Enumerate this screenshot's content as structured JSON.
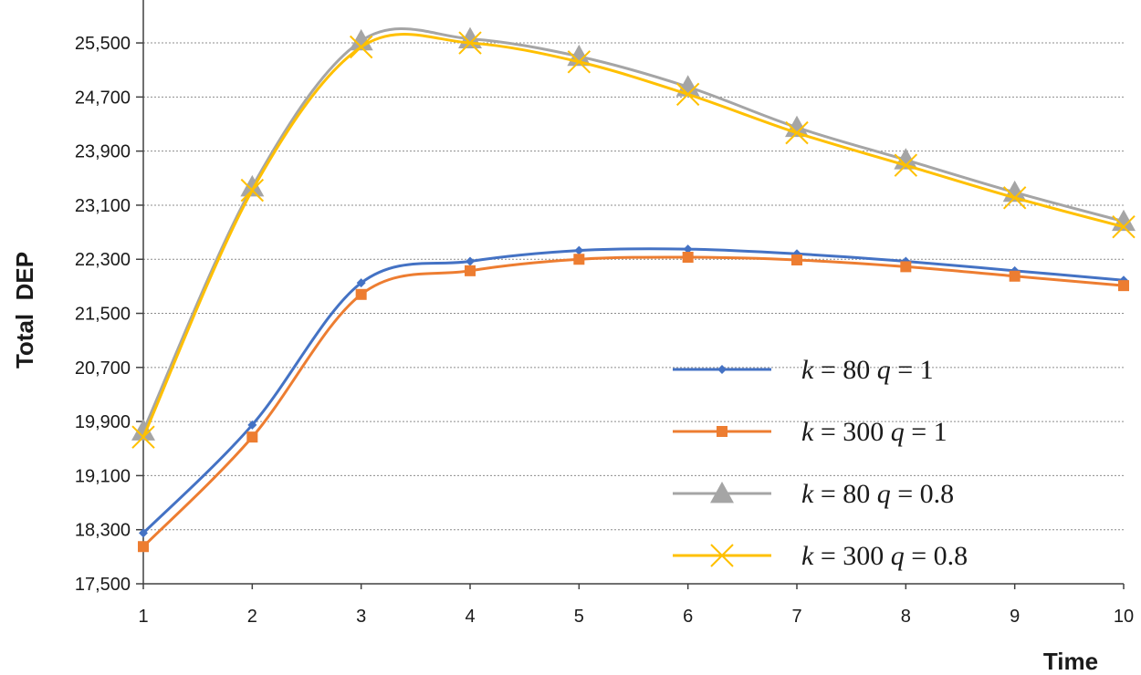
{
  "chart_data": {
    "type": "line",
    "title": "",
    "xlabel": "Time",
    "ylabel": "Total  DEP",
    "x": [
      1,
      2,
      3,
      4,
      5,
      6,
      7,
      8,
      9,
      10
    ],
    "x_tick_labels": [
      "1",
      "2",
      "3",
      "4",
      "5",
      "6",
      "7",
      "8",
      "9",
      "10"
    ],
    "ylim": [
      17500,
      26000
    ],
    "y_ticks": [
      17500,
      18300,
      19100,
      19900,
      20700,
      21500,
      22300,
      23100,
      23900,
      24700,
      25500
    ],
    "y_tick_labels": [
      "17,500",
      "18,300",
      "19,100",
      "19,900",
      "20,700",
      "21,500",
      "22,300",
      "23,100",
      "23,900",
      "24,700",
      "25,500"
    ],
    "grid": true,
    "legend_position": "center-right",
    "series": [
      {
        "name": "k = 80   q = 1",
        "legend_parts": [
          [
            "k",
            "var"
          ],
          [
            " = 80   ",
            "plain"
          ],
          [
            "q",
            "var"
          ],
          [
            " = 1",
            "plain"
          ]
        ],
        "color": "#4472c4",
        "marker": "diamond",
        "values": [
          18250,
          19850,
          21950,
          22270,
          22430,
          22450,
          22380,
          22270,
          22130,
          21990
        ]
      },
      {
        "name": "k = 300   q = 1",
        "legend_parts": [
          [
            "k",
            "var"
          ],
          [
            " = 300   ",
            "plain"
          ],
          [
            "q",
            "var"
          ],
          [
            " = 1",
            "plain"
          ]
        ],
        "color": "#ed7d31",
        "marker": "square",
        "values": [
          18050,
          19670,
          21780,
          22130,
          22300,
          22330,
          22290,
          22190,
          22050,
          21910
        ]
      },
      {
        "name": "k = 80   q = 0.8",
        "legend_parts": [
          [
            "k",
            "var"
          ],
          [
            " = 80   ",
            "plain"
          ],
          [
            "q",
            "var"
          ],
          [
            " = 0.8",
            "plain"
          ]
        ],
        "color": "#a5a5a5",
        "marker": "triangle",
        "values": [
          19760,
          23370,
          25530,
          25560,
          25300,
          24850,
          24250,
          23770,
          23290,
          22860
        ]
      },
      {
        "name": "k = 300   q = 0.8",
        "legend_parts": [
          [
            "k",
            "var"
          ],
          [
            " = 300   ",
            "plain"
          ],
          [
            "q",
            "var"
          ],
          [
            " = 0.8",
            "plain"
          ]
        ],
        "color": "#ffc000",
        "marker": "x",
        "values": [
          19670,
          23320,
          25440,
          25500,
          25220,
          24740,
          24170,
          23690,
          23210,
          22780
        ]
      }
    ]
  }
}
